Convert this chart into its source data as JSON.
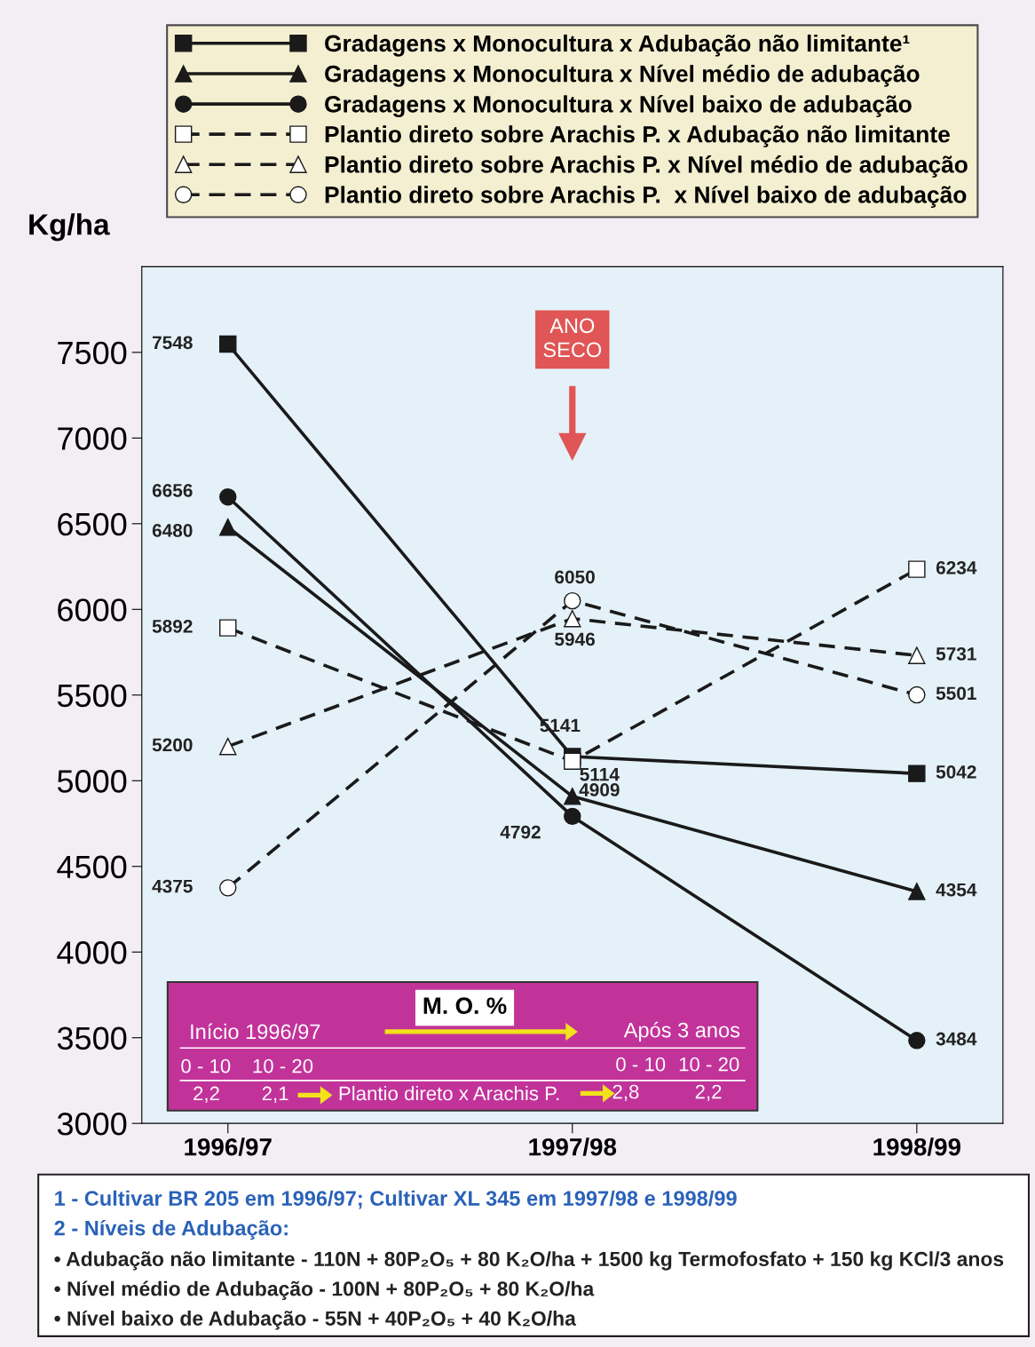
{
  "chart_data": {
    "type": "line",
    "ylabel": "Kg/ha",
    "categories": [
      "1996/97",
      "1997/98",
      "1998/99"
    ],
    "ylim": [
      3000,
      8000
    ],
    "yticks": [
      3000,
      3500,
      4000,
      4500,
      5000,
      5500,
      6000,
      6500,
      7000,
      7500
    ],
    "series": [
      {
        "name": "Gradagens x Monocultura x Adubação não limitante¹",
        "color": "#1a1a1a",
        "values": [
          7548,
          5141,
          5042
        ],
        "marker": "square",
        "line_style": "solid"
      },
      {
        "name": "Gradagens x Monocultura x Nível médio de adubação",
        "color": "#1a1a1a",
        "values": [
          6480,
          4909,
          4354
        ],
        "marker": "triangle",
        "line_style": "solid"
      },
      {
        "name": "Gradagens x Monocultura x Nível baixo de adubação",
        "color": "#1a1a1a",
        "values": [
          6656,
          4792,
          3484
        ],
        "marker": "circle",
        "line_style": "solid"
      },
      {
        "name": "Plantio direto sobre Arachis P. x Adubação não limitante",
        "color": "#1a1a1a",
        "values": [
          5892,
          5114,
          6234
        ],
        "marker": "square",
        "line_style": "dashed"
      },
      {
        "name": "Plantio direto sobre Arachis P. x Nível médio de adubação",
        "color": "#1a1a1a",
        "values": [
          5200,
          5946,
          5731
        ],
        "marker": "triangle",
        "line_style": "dashed"
      },
      {
        "name": "Plantio direto sobre Arachis P.  x Nível baixo de adubação",
        "color": "#1a1a1a",
        "values": [
          4375,
          6050,
          5501
        ],
        "marker": "circle",
        "line_style": "dashed"
      }
    ],
    "data_labels": true,
    "legend": "top",
    "grid": false,
    "annotations": [
      "ANO\nSECO",
      "M. O. %",
      "Início 1996/97",
      "Após 3 anos",
      "0 - 10",
      "10 - 20",
      "0 - 10",
      "10 - 20",
      "2,2",
      "2,1",
      "Plantio direto x Arachis P.",
      "2,8",
      "2,2",
      "1 - Cultivar BR 205 em 1996/97; Cultivar XL 345 em 1997/98 e 1998/99",
      "2 - Níveis de Adubação:",
      "• Adubação não limitante - 110N + 80P₂O₅ + 80 K₂O/ha + 1500 kg Termofosfato + 150 kg KCl/3 anos",
      "• Nível médio de Adubação - 100N + 80P₂O₅ + 80 K₂O/ha",
      "• Nível baixo de Adubação - 55N + 40P₂O₅ + 40 K₂O/ha"
    ]
  }
}
